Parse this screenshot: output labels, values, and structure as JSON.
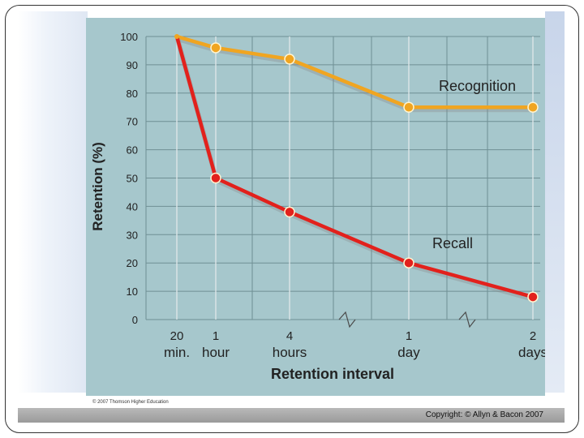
{
  "footer": {
    "copyright": "Copyright: © Allyn & Bacon 2007"
  },
  "figure": {
    "credit": "© 2007 Thomson Higher Education"
  },
  "chart_data": {
    "type": "line",
    "title": "",
    "ylabel": "Retention (%)",
    "xlabel": "Retention interval",
    "ylim": [
      0,
      100
    ],
    "yticks": [
      0,
      10,
      20,
      30,
      40,
      50,
      60,
      70,
      80,
      90,
      100
    ],
    "categories": [
      {
        "line1": "20",
        "line2": "min."
      },
      {
        "line1": "1",
        "line2": "hour"
      },
      {
        "line1": "4",
        "line2": "hours"
      },
      {
        "line1": "1",
        "line2": "day"
      },
      {
        "line1": "2",
        "line2": "days"
      }
    ],
    "grid": true,
    "axis_breaks": true,
    "series": [
      {
        "name": "Recognition",
        "color": "#f0a521",
        "values": [
          100,
          96,
          92,
          75,
          75
        ]
      },
      {
        "name": "Recall",
        "color": "#e2211c",
        "values": [
          100,
          50,
          38,
          20,
          8
        ]
      }
    ],
    "colors": {
      "plot_background": "#a6c7cc",
      "gridline": "#6f8f94"
    }
  }
}
